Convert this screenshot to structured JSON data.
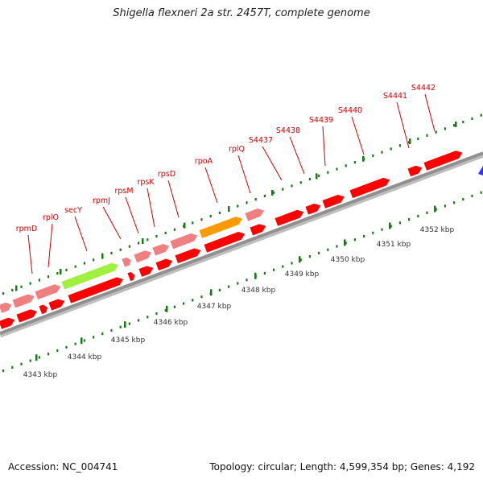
{
  "title": "Shigella flexneri 2a str. 2457T, complete genome",
  "footer": {
    "accession": "Accession: NC_004741",
    "summary": "Topology: circular; Length: 4,599,354 bp; Genes: 4,192"
  },
  "colors": {
    "gene_plain": "#ff0000",
    "gene_ribosomal": "#f08080",
    "gene_secY": "#a0f040",
    "gene_rpoA": "#ff9900",
    "backbone": "#909090",
    "ticks": "#1a7a1a",
    "labels": "#cc0000",
    "scale_text": "#333333",
    "end_marker": "#3333ff"
  },
  "scale_labels": [
    "4343 kbp",
    "4344 kbp",
    "4345 kbp",
    "4346 kbp",
    "4347 kbp",
    "4348 kbp",
    "4349 kbp",
    "4350 kbp",
    "4351 kbp",
    "4352 kbp"
  ],
  "gene_labels": [
    "rpmD",
    "rplO",
    "secY",
    "rpmJ",
    "rpsM",
    "rpsK",
    "rpsD",
    "rpoA",
    "rplQ",
    "S4437",
    "S4438",
    "S4439",
    "S4440",
    "S4441",
    "S4442"
  ]
}
